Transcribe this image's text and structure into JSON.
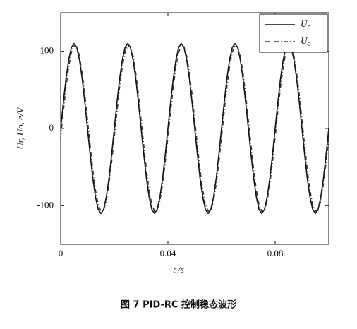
{
  "chart_data": {
    "type": "line",
    "xlabel": "t /s",
    "ylabel": "Ur, Uo, e/V",
    "caption": "图 7   PID-RC 控制稳态波形",
    "x": [
      0,
      0.001,
      0.002,
      0.003,
      0.004,
      0.005,
      0.006,
      0.007,
      0.008,
      0.009,
      0.01,
      0.011,
      0.012,
      0.013,
      0.014,
      0.015,
      0.016,
      0.017,
      0.018,
      0.019,
      0.02,
      0.021,
      0.022,
      0.023,
      0.024,
      0.025,
      0.026,
      0.027,
      0.028,
      0.029,
      0.03,
      0.031,
      0.032,
      0.033,
      0.034,
      0.035,
      0.036,
      0.037,
      0.038,
      0.039,
      0.04,
      0.041,
      0.042,
      0.043,
      0.044,
      0.045,
      0.046,
      0.047,
      0.048,
      0.049,
      0.05,
      0.051,
      0.052,
      0.053,
      0.054,
      0.055,
      0.056,
      0.057,
      0.058,
      0.059,
      0.06,
      0.061,
      0.062,
      0.063,
      0.064,
      0.065,
      0.066,
      0.067,
      0.068,
      0.069,
      0.07,
      0.071,
      0.072,
      0.073,
      0.074,
      0.075,
      0.076,
      0.077,
      0.078,
      0.079,
      0.08,
      0.081,
      0.082,
      0.083,
      0.084,
      0.085,
      0.086,
      0.087,
      0.088,
      0.089,
      0.09,
      0.091,
      0.092,
      0.093,
      0.094,
      0.095,
      0.096,
      0.097,
      0.098,
      0.099,
      0.1
    ],
    "series": [
      {
        "name": "Ur",
        "color": "#111111",
        "dash": "none",
        "values": [
          0,
          34,
          65,
          89,
          105,
          110,
          105,
          89,
          65,
          34,
          0,
          -34,
          -65,
          -89,
          -105,
          -110,
          -105,
          -89,
          -65,
          -34,
          0,
          34,
          65,
          89,
          105,
          110,
          105,
          89,
          65,
          34,
          0,
          -34,
          -65,
          -89,
          -105,
          -110,
          -105,
          -89,
          -65,
          -34,
          0,
          34,
          65,
          89,
          105,
          110,
          105,
          89,
          65,
          34,
          0,
          -34,
          -65,
          -89,
          -105,
          -110,
          -105,
          -89,
          -65,
          -34,
          0,
          34,
          65,
          89,
          105,
          110,
          105,
          89,
          65,
          34,
          0,
          -34,
          -65,
          -89,
          -105,
          -110,
          -105,
          -89,
          -65,
          -34,
          0,
          34,
          65,
          89,
          105,
          110,
          105,
          89,
          65,
          34,
          0,
          -34,
          -65,
          -89,
          -105,
          -110,
          -105,
          -89,
          -65,
          -34,
          0
        ]
      },
      {
        "name": "Uo",
        "color": "#333333",
        "dash": "6,3,1,3",
        "values": [
          -11,
          22,
          54,
          80,
          99,
          107,
          106,
          94,
          72,
          44,
          11,
          -22,
          -54,
          -80,
          -99,
          -107,
          -106,
          -94,
          -72,
          -44,
          -11,
          22,
          54,
          80,
          99,
          107,
          106,
          94,
          72,
          44,
          11,
          -22,
          -54,
          -80,
          -99,
          -107,
          -106,
          -94,
          -72,
          -44,
          -11,
          22,
          54,
          80,
          99,
          107,
          106,
          94,
          72,
          44,
          11,
          -22,
          -54,
          -80,
          -99,
          -107,
          -106,
          -94,
          -72,
          -44,
          -11,
          22,
          54,
          80,
          99,
          107,
          106,
          94,
          72,
          44,
          11,
          -22,
          -54,
          -80,
          -99,
          -107,
          -106,
          -94,
          -72,
          -44,
          -11,
          22,
          54,
          80,
          99,
          107,
          106,
          94,
          72,
          44,
          11,
          -22,
          -54,
          -80,
          -99,
          -107,
          -106,
          -94,
          -72,
          -44,
          -11
        ]
      }
    ],
    "xlim": [
      0,
      0.1
    ],
    "ylim": [
      -150,
      150
    ],
    "xticks": [
      0,
      0.04,
      0.08
    ],
    "yticks": [
      -100,
      0,
      100
    ],
    "legend": "upper right"
  }
}
